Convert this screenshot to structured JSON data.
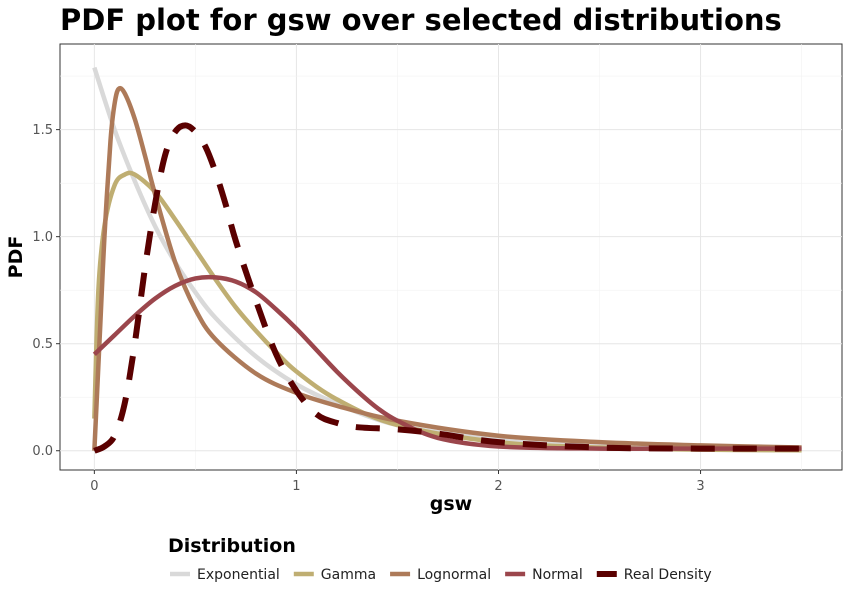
{
  "chart_data": {
    "type": "line",
    "title": "PDF plot for gsw over selected distributions",
    "xlabel": "gsw",
    "ylabel": "PDF",
    "xlim": [
      -0.17,
      3.7
    ],
    "ylim": [
      -0.09,
      1.9
    ],
    "x_ticks": [
      0,
      1,
      2,
      3
    ],
    "x_tick_labels": [
      "0",
      "1",
      "2",
      "3"
    ],
    "y_ticks": [
      0.0,
      0.5,
      1.0,
      1.5
    ],
    "y_tick_labels": [
      "0.0",
      "0.5",
      "1.0",
      "1.5"
    ],
    "grid": true,
    "legend": {
      "title": "Distribution",
      "position": "bottom"
    },
    "series": [
      {
        "name": "Exponential",
        "color": "#d9d9d9",
        "dash": "solid",
        "x": [
          0,
          0.1,
          0.2,
          0.3,
          0.4,
          0.5,
          0.6,
          0.8,
          1.0,
          1.2,
          1.5,
          2.0,
          2.5,
          3.0,
          3.5
        ],
        "y": [
          1.79,
          1.5,
          1.26,
          1.05,
          0.88,
          0.74,
          0.62,
          0.44,
          0.31,
          0.22,
          0.12,
          0.05,
          0.02,
          0.01,
          0.003
        ]
      },
      {
        "name": "Gamma",
        "color": "#bfae72",
        "dash": "solid",
        "x": [
          0,
          0.02,
          0.05,
          0.1,
          0.15,
          0.2,
          0.3,
          0.4,
          0.5,
          0.6,
          0.7,
          0.8,
          0.9,
          1.0,
          1.2,
          1.5,
          2.0,
          2.5,
          3.0,
          3.5
        ],
        "y": [
          0.15,
          0.75,
          1.05,
          1.24,
          1.29,
          1.29,
          1.21,
          1.08,
          0.94,
          0.8,
          0.67,
          0.56,
          0.46,
          0.37,
          0.24,
          0.12,
          0.04,
          0.015,
          0.005,
          0.002
        ]
      },
      {
        "name": "Lognormal",
        "color": "#ad7a59",
        "dash": "solid",
        "x": [
          0,
          0.03,
          0.05,
          0.08,
          0.1,
          0.12,
          0.15,
          0.2,
          0.25,
          0.3,
          0.4,
          0.5,
          0.6,
          0.8,
          1.0,
          1.2,
          1.5,
          2.0,
          2.5,
          3.0,
          3.5
        ],
        "y": [
          0,
          0.6,
          1.0,
          1.45,
          1.62,
          1.69,
          1.67,
          1.55,
          1.38,
          1.2,
          0.88,
          0.66,
          0.52,
          0.36,
          0.27,
          0.21,
          0.14,
          0.07,
          0.04,
          0.025,
          0.015
        ]
      },
      {
        "name": "Normal",
        "color": "#9b464c",
        "dash": "solid",
        "x": [
          0,
          0.1,
          0.2,
          0.3,
          0.4,
          0.5,
          0.6,
          0.7,
          0.8,
          0.9,
          1.0,
          1.1,
          1.2,
          1.3,
          1.4,
          1.5,
          1.7,
          2.0,
          2.5,
          3.0,
          3.5
        ],
        "y": [
          0.45,
          0.54,
          0.63,
          0.71,
          0.77,
          0.805,
          0.81,
          0.79,
          0.74,
          0.66,
          0.57,
          0.47,
          0.37,
          0.28,
          0.2,
          0.14,
          0.06,
          0.02,
          0.01,
          0.01,
          0.01
        ]
      },
      {
        "name": "Real Density",
        "color": "#5a0000",
        "dash": "dashed",
        "x": [
          0,
          0.05,
          0.1,
          0.15,
          0.2,
          0.25,
          0.3,
          0.35,
          0.4,
          0.45,
          0.5,
          0.55,
          0.6,
          0.65,
          0.7,
          0.8,
          0.9,
          1.0,
          1.1,
          1.2,
          1.3,
          1.5,
          1.7,
          2.0,
          2.5,
          3.0,
          3.5
        ],
        "y": [
          0,
          0.02,
          0.07,
          0.22,
          0.5,
          0.85,
          1.15,
          1.38,
          1.49,
          1.52,
          1.49,
          1.42,
          1.3,
          1.15,
          0.98,
          0.7,
          0.45,
          0.28,
          0.17,
          0.13,
          0.11,
          0.1,
          0.08,
          0.04,
          0.015,
          0.01,
          0.01
        ]
      }
    ]
  }
}
